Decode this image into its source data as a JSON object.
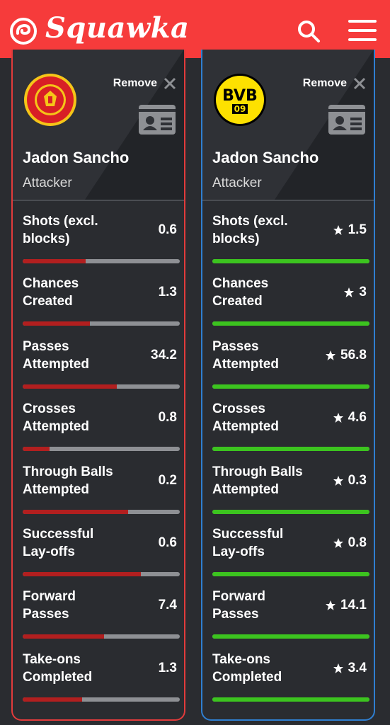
{
  "header": {
    "brand": "Squawka",
    "colors": {
      "bar": "#f63b3b"
    },
    "icons": [
      "squawka-logo-icon",
      "search-icon",
      "menu-icon"
    ]
  },
  "players": [
    {
      "club": "Manchester United",
      "club_logo_icon": "manchester-united-crest-icon",
      "accent": "#e23b3b",
      "bar_color": "#b21f1f",
      "remove_label": "Remove",
      "name": "Jadon Sancho",
      "position": "Attacker",
      "stats": [
        {
          "label": "Shots (excl. blocks)",
          "value": "0.6",
          "star": false,
          "fraction": 0.4
        },
        {
          "label": "Chances Created",
          "value": "1.3",
          "star": false,
          "fraction": 0.43
        },
        {
          "label": "Passes Attempted",
          "value": "34.2",
          "star": false,
          "fraction": 0.6
        },
        {
          "label": "Crosses Attempted",
          "value": "0.8",
          "star": false,
          "fraction": 0.17
        },
        {
          "label": "Through Balls Attempted",
          "value": "0.2",
          "star": false,
          "fraction": 0.67
        },
        {
          "label": "Successful Lay-offs",
          "value": "0.6",
          "star": false,
          "fraction": 0.75
        },
        {
          "label": "Forward Passes",
          "value": "7.4",
          "star": false,
          "fraction": 0.52
        },
        {
          "label": "Take-ons Completed",
          "value": "1.3",
          "star": false,
          "fraction": 0.38
        }
      ]
    },
    {
      "club": "Borussia Dortmund",
      "club_logo_icon": "bvb-crest-icon",
      "accent": "#2f7fd1",
      "bar_color": "#3cc41f",
      "remove_label": "Remove",
      "name": "Jadon Sancho",
      "position": "Attacker",
      "stats": [
        {
          "label": "Shots (excl. blocks)",
          "value": "1.5",
          "star": true,
          "fraction": 1
        },
        {
          "label": "Chances Created",
          "value": "3",
          "star": true,
          "fraction": 1
        },
        {
          "label": "Passes Attempted",
          "value": "56.8",
          "star": true,
          "fraction": 1
        },
        {
          "label": "Crosses Attempted",
          "value": "4.6",
          "star": true,
          "fraction": 1
        },
        {
          "label": "Through Balls Attempted",
          "value": "0.3",
          "star": true,
          "fraction": 1
        },
        {
          "label": "Successful Lay-offs",
          "value": "0.8",
          "star": true,
          "fraction": 1
        },
        {
          "label": "Forward Passes",
          "value": "14.1",
          "star": true,
          "fraction": 1
        },
        {
          "label": "Take-ons Completed",
          "value": "3.4",
          "star": true,
          "fraction": 1
        }
      ]
    }
  ]
}
